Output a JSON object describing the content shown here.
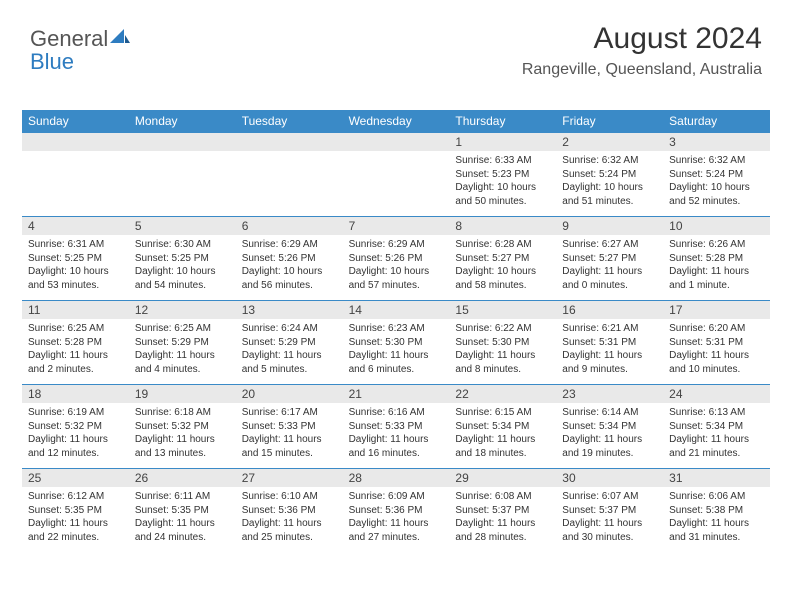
{
  "brand": {
    "first": "General",
    "second": "Blue"
  },
  "title": "August 2024",
  "location": "Rangeville, Queensland, Australia",
  "colors": {
    "header_bg": "#3a8ac7",
    "header_text": "#ffffff",
    "daybar_bg": "#e9e9e9",
    "border": "#3a8ac7",
    "text": "#333333",
    "brand_gray": "#555555",
    "brand_blue": "#2e7cc0",
    "background": "#ffffff"
  },
  "typography": {
    "title_fontsize": 30,
    "location_fontsize": 16,
    "dayhead_fontsize": 12,
    "daynum_fontsize": 12,
    "info_fontsize": 10
  },
  "dayHeaders": [
    "Sunday",
    "Monday",
    "Tuesday",
    "Wednesday",
    "Thursday",
    "Friday",
    "Saturday"
  ],
  "startOffset": 4,
  "days": [
    {
      "n": "1",
      "sunrise": "6:33 AM",
      "sunset": "5:23 PM",
      "daylight": "10 hours and 50 minutes."
    },
    {
      "n": "2",
      "sunrise": "6:32 AM",
      "sunset": "5:24 PM",
      "daylight": "10 hours and 51 minutes."
    },
    {
      "n": "3",
      "sunrise": "6:32 AM",
      "sunset": "5:24 PM",
      "daylight": "10 hours and 52 minutes."
    },
    {
      "n": "4",
      "sunrise": "6:31 AM",
      "sunset": "5:25 PM",
      "daylight": "10 hours and 53 minutes."
    },
    {
      "n": "5",
      "sunrise": "6:30 AM",
      "sunset": "5:25 PM",
      "daylight": "10 hours and 54 minutes."
    },
    {
      "n": "6",
      "sunrise": "6:29 AM",
      "sunset": "5:26 PM",
      "daylight": "10 hours and 56 minutes."
    },
    {
      "n": "7",
      "sunrise": "6:29 AM",
      "sunset": "5:26 PM",
      "daylight": "10 hours and 57 minutes."
    },
    {
      "n": "8",
      "sunrise": "6:28 AM",
      "sunset": "5:27 PM",
      "daylight": "10 hours and 58 minutes."
    },
    {
      "n": "9",
      "sunrise": "6:27 AM",
      "sunset": "5:27 PM",
      "daylight": "11 hours and 0 minutes."
    },
    {
      "n": "10",
      "sunrise": "6:26 AM",
      "sunset": "5:28 PM",
      "daylight": "11 hours and 1 minute."
    },
    {
      "n": "11",
      "sunrise": "6:25 AM",
      "sunset": "5:28 PM",
      "daylight": "11 hours and 2 minutes."
    },
    {
      "n": "12",
      "sunrise": "6:25 AM",
      "sunset": "5:29 PM",
      "daylight": "11 hours and 4 minutes."
    },
    {
      "n": "13",
      "sunrise": "6:24 AM",
      "sunset": "5:29 PM",
      "daylight": "11 hours and 5 minutes."
    },
    {
      "n": "14",
      "sunrise": "6:23 AM",
      "sunset": "5:30 PM",
      "daylight": "11 hours and 6 minutes."
    },
    {
      "n": "15",
      "sunrise": "6:22 AM",
      "sunset": "5:30 PM",
      "daylight": "11 hours and 8 minutes."
    },
    {
      "n": "16",
      "sunrise": "6:21 AM",
      "sunset": "5:31 PM",
      "daylight": "11 hours and 9 minutes."
    },
    {
      "n": "17",
      "sunrise": "6:20 AM",
      "sunset": "5:31 PM",
      "daylight": "11 hours and 10 minutes."
    },
    {
      "n": "18",
      "sunrise": "6:19 AM",
      "sunset": "5:32 PM",
      "daylight": "11 hours and 12 minutes."
    },
    {
      "n": "19",
      "sunrise": "6:18 AM",
      "sunset": "5:32 PM",
      "daylight": "11 hours and 13 minutes."
    },
    {
      "n": "20",
      "sunrise": "6:17 AM",
      "sunset": "5:33 PM",
      "daylight": "11 hours and 15 minutes."
    },
    {
      "n": "21",
      "sunrise": "6:16 AM",
      "sunset": "5:33 PM",
      "daylight": "11 hours and 16 minutes."
    },
    {
      "n": "22",
      "sunrise": "6:15 AM",
      "sunset": "5:34 PM",
      "daylight": "11 hours and 18 minutes."
    },
    {
      "n": "23",
      "sunrise": "6:14 AM",
      "sunset": "5:34 PM",
      "daylight": "11 hours and 19 minutes."
    },
    {
      "n": "24",
      "sunrise": "6:13 AM",
      "sunset": "5:34 PM",
      "daylight": "11 hours and 21 minutes."
    },
    {
      "n": "25",
      "sunrise": "6:12 AM",
      "sunset": "5:35 PM",
      "daylight": "11 hours and 22 minutes."
    },
    {
      "n": "26",
      "sunrise": "6:11 AM",
      "sunset": "5:35 PM",
      "daylight": "11 hours and 24 minutes."
    },
    {
      "n": "27",
      "sunrise": "6:10 AM",
      "sunset": "5:36 PM",
      "daylight": "11 hours and 25 minutes."
    },
    {
      "n": "28",
      "sunrise": "6:09 AM",
      "sunset": "5:36 PM",
      "daylight": "11 hours and 27 minutes."
    },
    {
      "n": "29",
      "sunrise": "6:08 AM",
      "sunset": "5:37 PM",
      "daylight": "11 hours and 28 minutes."
    },
    {
      "n": "30",
      "sunrise": "6:07 AM",
      "sunset": "5:37 PM",
      "daylight": "11 hours and 30 minutes."
    },
    {
      "n": "31",
      "sunrise": "6:06 AM",
      "sunset": "5:38 PM",
      "daylight": "11 hours and 31 minutes."
    }
  ],
  "labels": {
    "sunrise": "Sunrise: ",
    "sunset": "Sunset: ",
    "daylight": "Daylight: "
  }
}
